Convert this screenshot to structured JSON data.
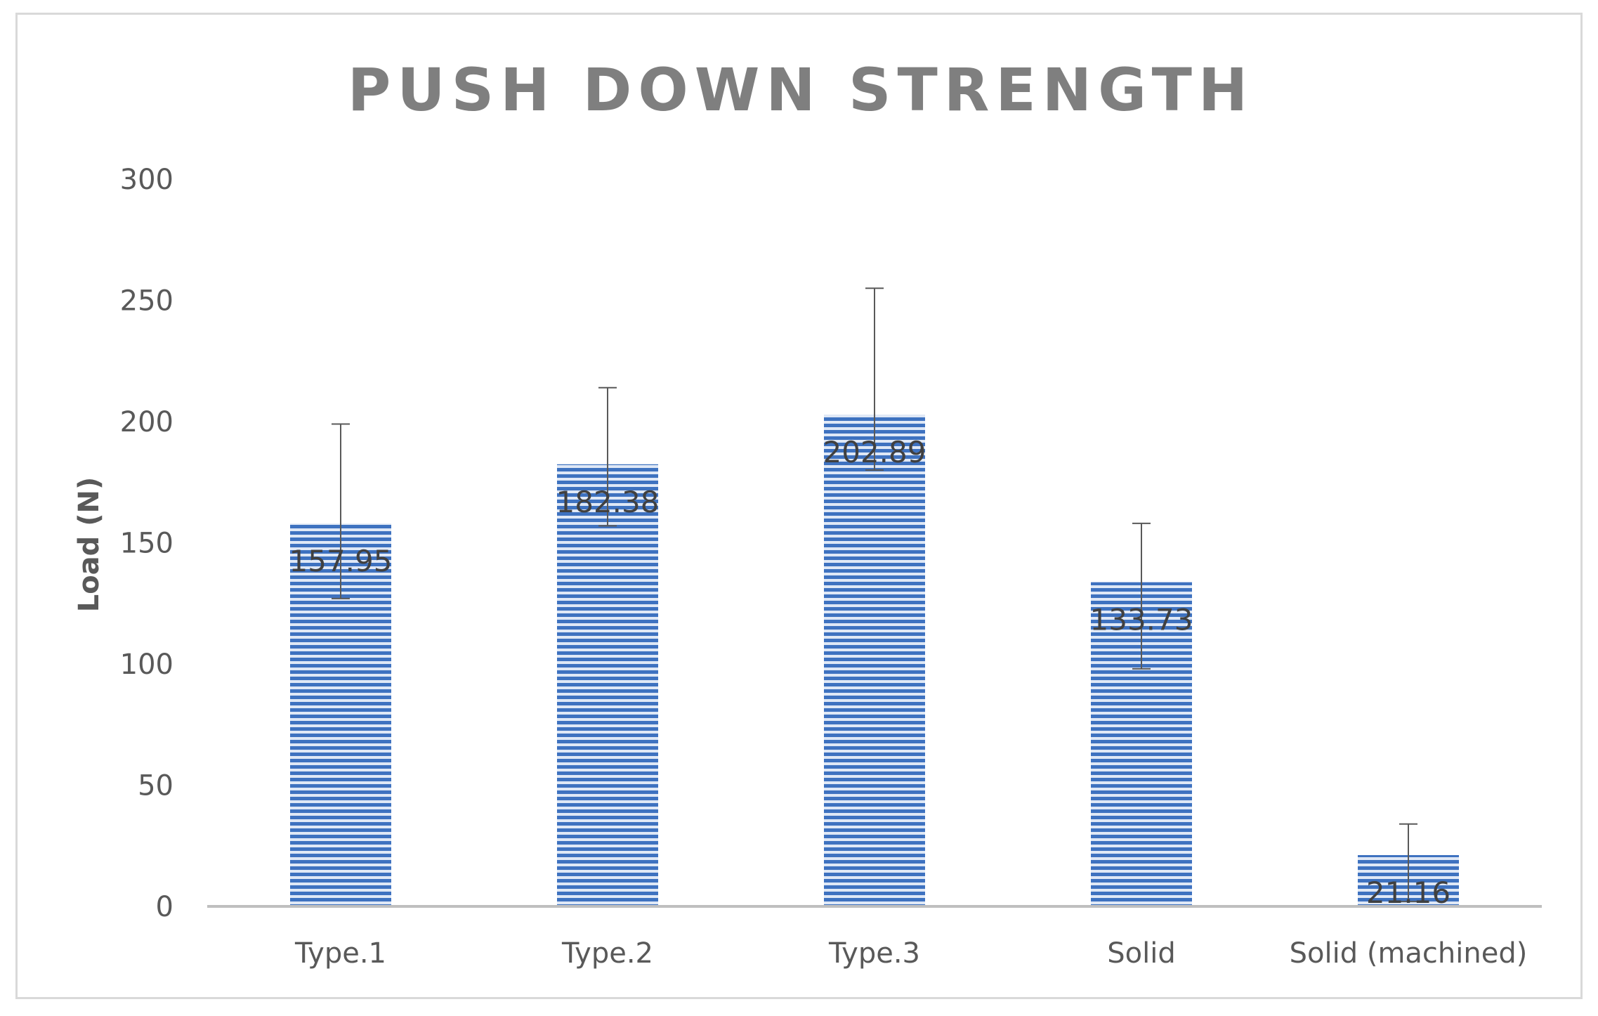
{
  "chart_data": {
    "type": "bar",
    "title": "PUSH DOWN STRENGTH",
    "xlabel": "",
    "ylabel": "Load (N)",
    "categories": [
      "Type.1",
      "Type.2",
      "Type.3",
      "Solid",
      "Solid (machined)"
    ],
    "values": [
      157.95,
      182.38,
      202.89,
      133.73,
      21.16
    ],
    "data_labels": [
      "157.95",
      "182.38",
      "202.89",
      "133.73",
      "21.16"
    ],
    "error_bars": [
      {
        "low": 127,
        "high": 199
      },
      {
        "low": 157,
        "high": 214
      },
      {
        "low": 180,
        "high": 255
      },
      {
        "low": 98,
        "high": 158
      },
      {
        "low": 2,
        "high": 34
      }
    ],
    "ylim": [
      0,
      300
    ],
    "yticks": [
      "0",
      "50",
      "100",
      "150",
      "200",
      "250",
      "300"
    ],
    "ytick_values": [
      0,
      50,
      100,
      150,
      200,
      250,
      300
    ],
    "grid": false,
    "legend": "none",
    "colors": {
      "bar_stripe_dark": "#3e72c0",
      "bar_stripe_light": "#dfe8f6",
      "axis": "#bfbfbf",
      "error_bar": "#595959",
      "title": "#7f7f7f",
      "frame": "#d9d9d9"
    }
  }
}
